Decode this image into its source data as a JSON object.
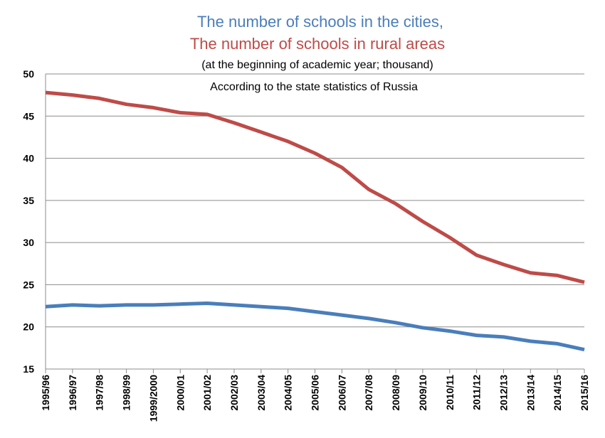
{
  "chart_data": {
    "type": "line",
    "title_lines": [
      {
        "text": "The number of schools in the cities,",
        "color": "#4a7ebb"
      },
      {
        "text": "The number of schools in rural areas",
        "color": "#be4b48"
      }
    ],
    "subtitle": "(at the beginning of academic year; thousand)",
    "annotation": "According to the state statistics of Russia",
    "categories": [
      "1995/96",
      "1996/97",
      "1997/98",
      "1998/99",
      "1999/2000",
      "2000/01",
      "2001/02",
      "2002/03",
      "2003/04",
      "2004/05",
      "2005/06",
      "2006/07",
      "2007/08",
      "2008/09",
      "2009/10",
      "2010/11",
      "2011/12",
      "2012/13",
      "2013/14",
      "2014/15",
      "2015/16"
    ],
    "series": [
      {
        "color": "#be4b48",
        "values": [
          47.8,
          47.5,
          47.1,
          46.4,
          46.0,
          45.4,
          45.2,
          44.2,
          43.1,
          42.0,
          40.6,
          38.9,
          36.3,
          34.6,
          32.5,
          30.6,
          28.5,
          27.4,
          26.4,
          26.1,
          25.3
        ]
      },
      {
        "color": "#4a7ebb",
        "values": [
          22.4,
          22.6,
          22.5,
          22.6,
          22.6,
          22.7,
          22.8,
          22.6,
          22.4,
          22.2,
          21.8,
          21.4,
          21.0,
          20.5,
          19.9,
          19.5,
          19.0,
          18.8,
          18.3,
          18.0,
          17.3
        ]
      }
    ],
    "ylim": [
      15,
      50
    ],
    "yticks": [
      15,
      20,
      25,
      30,
      35,
      40,
      45,
      50
    ],
    "grid": true
  }
}
